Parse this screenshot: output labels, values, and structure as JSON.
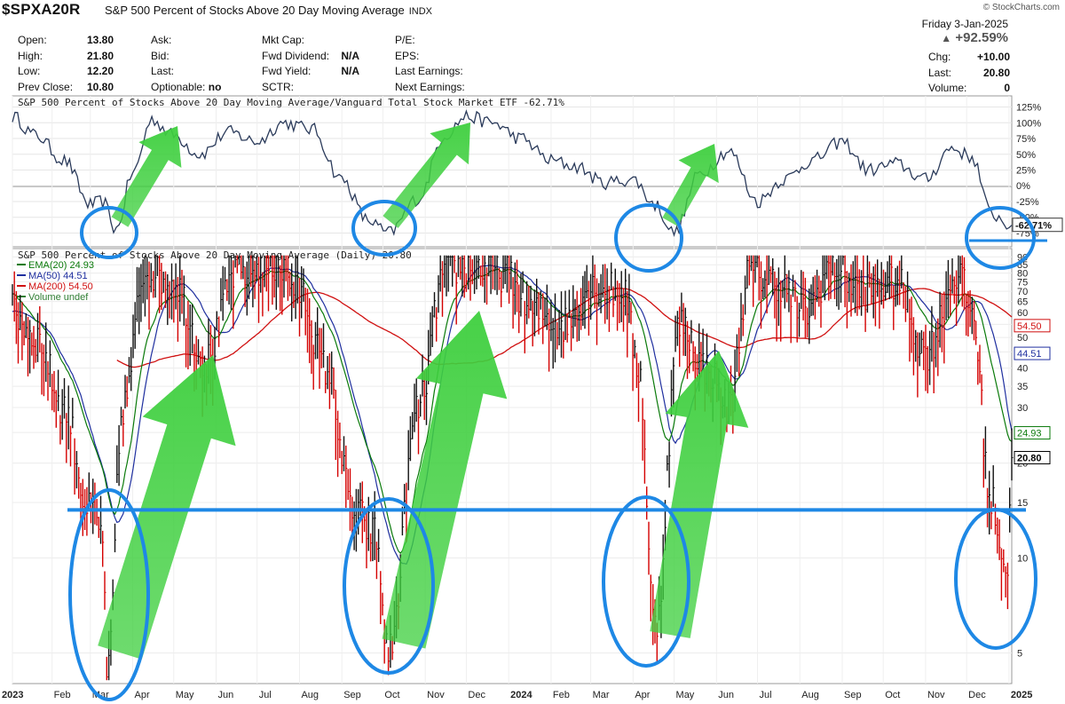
{
  "header": {
    "symbol": "$SPXA20R",
    "name": "S&P 500 Percent of Stocks Above 20 Day Moving Average",
    "exchange": "INDX",
    "brand": "© StockCharts.com",
    "date": "Friday  3-Jan-2025",
    "change_pct": "+92.59%",
    "col1": [
      {
        "label": "Open:",
        "value": "13.80"
      },
      {
        "label": "High:",
        "value": "21.80"
      },
      {
        "label": "Low:",
        "value": "12.20"
      },
      {
        "label": "Prev Close:",
        "value": "10.80"
      }
    ],
    "col2": [
      {
        "label": "Ask:",
        "value": ""
      },
      {
        "label": "Bid:",
        "value": ""
      },
      {
        "label": "Last:",
        "value": ""
      },
      {
        "label": "Optionable:",
        "value": "no"
      }
    ],
    "col3": [
      {
        "label": "Mkt Cap:",
        "value": ""
      },
      {
        "label": "Fwd Dividend:",
        "value": "N/A"
      },
      {
        "label": "Fwd Yield:",
        "value": "N/A"
      },
      {
        "label": "SCTR:",
        "value": ""
      }
    ],
    "col4": [
      {
        "label": "P/E:",
        "value": ""
      },
      {
        "label": "EPS:",
        "value": ""
      },
      {
        "label": "Last Earnings:",
        "value": ""
      },
      {
        "label": "Next Earnings:",
        "value": ""
      }
    ],
    "col5": [
      {
        "label": "Chg:",
        "value": "+10.00"
      },
      {
        "label": "Last:",
        "value": "20.80"
      },
      {
        "label": "Volume:",
        "value": "0"
      }
    ]
  },
  "chart_data": [
    {
      "type": "line",
      "title": "S&P 500 Percent of Stocks Above 20 Day Moving Average/Vanguard Total Stock Market ETF -62.71%",
      "y_ticks": [
        "125%",
        "100%",
        "75%",
        "50%",
        "25%",
        "0%",
        "-25%",
        "-50%",
        "-75%"
      ],
      "ylim": [
        -80,
        130
      ],
      "last_label": "-62.71%",
      "x": [
        "2023-01-03",
        "2023-01-20",
        "2023-02-10",
        "2023-03-01",
        "2023-03-10",
        "2023-03-20",
        "2023-04-01",
        "2023-04-15",
        "2023-05-01",
        "2023-05-20",
        "2023-06-10",
        "2023-07-01",
        "2023-07-20",
        "2023-08-10",
        "2023-09-01",
        "2023-09-20",
        "2023-10-05",
        "2023-10-27",
        "2023-11-15",
        "2023-12-01",
        "2023-12-20",
        "2024-01-10",
        "2024-02-01",
        "2024-02-20",
        "2024-03-10",
        "2024-04-01",
        "2024-04-17",
        "2024-05-01",
        "2024-05-20",
        "2024-06-10",
        "2024-07-01",
        "2024-07-20",
        "2024-08-10",
        "2024-09-01",
        "2024-09-20",
        "2024-10-10",
        "2024-11-01",
        "2024-11-20",
        "2024-12-05",
        "2024-12-19",
        "2025-01-03"
      ],
      "values": [
        110,
        80,
        40,
        -30,
        -25,
        -70,
        20,
        105,
        80,
        50,
        85,
        70,
        100,
        90,
        10,
        -55,
        -75,
        -20,
        80,
        110,
        100,
        75,
        40,
        30,
        5,
        10,
        -30,
        -75,
        20,
        55,
        -25,
        10,
        40,
        70,
        25,
        35,
        10,
        60,
        45,
        -45,
        -62.71
      ]
    },
    {
      "type": "line",
      "title": "S&P 500 Percent of Stocks Above 20 Day Moving Average (Daily) 20.80",
      "scale": "log",
      "y_ticks": [
        "90",
        "85",
        "80",
        "75",
        "70",
        "65",
        "60",
        "55",
        "50",
        "45",
        "40",
        "35",
        "30",
        "25",
        "20",
        "15",
        "10",
        "5"
      ],
      "ylim": [
        4,
        92
      ],
      "legend": [
        {
          "name": "EMA(20) 24.93",
          "color": "#0a7a0a"
        },
        {
          "name": "MA(50) 44.51",
          "color": "#1f2f9f"
        },
        {
          "name": "MA(200) 54.50",
          "color": "#d01010"
        },
        {
          "name": "Volume undef",
          "color": "#2e7d32"
        }
      ],
      "right_labels": [
        {
          "text": "54.50",
          "value": 54.5,
          "color": "#d01010"
        },
        {
          "text": "44.51",
          "value": 44.51,
          "color": "#1f2f9f"
        },
        {
          "text": "24.93",
          "value": 24.93,
          "color": "#0a7a0a"
        },
        {
          "text": "20.80",
          "value": 20.8,
          "color": "#000000"
        }
      ],
      "x_ticks": [
        "2023",
        "Feb",
        "Mar",
        "Apr",
        "May",
        "Jun",
        "Jul",
        "Aug",
        "Sep",
        "Oct",
        "Nov",
        "Dec",
        "2024",
        "Feb",
        "Mar",
        "Apr",
        "May",
        "Jun",
        "Jul",
        "Aug",
        "Sep",
        "Oct",
        "Nov",
        "Dec",
        "2025"
      ],
      "x": [
        "2023-01-03",
        "2023-01-20",
        "2023-02-10",
        "2023-02-28",
        "2023-03-10",
        "2023-03-13",
        "2023-03-25",
        "2023-04-10",
        "2023-05-01",
        "2023-05-25",
        "2023-06-15",
        "2023-07-15",
        "2023-08-01",
        "2023-08-20",
        "2023-09-10",
        "2023-09-25",
        "2023-10-05",
        "2023-10-27",
        "2023-11-15",
        "2023-12-01",
        "2023-12-28",
        "2024-01-20",
        "2024-02-10",
        "2024-03-01",
        "2024-03-25",
        "2024-04-05",
        "2024-04-17",
        "2024-05-05",
        "2024-05-25",
        "2024-06-10",
        "2024-06-25",
        "2024-07-15",
        "2024-08-05",
        "2024-08-25",
        "2024-09-15",
        "2024-10-10",
        "2024-11-01",
        "2024-11-25",
        "2024-12-05",
        "2024-12-19",
        "2024-12-31",
        "2025-01-03"
      ],
      "values": [
        60,
        50,
        30,
        14,
        12,
        4,
        30,
        82,
        75,
        42,
        80,
        85,
        70,
        40,
        14,
        12,
        5,
        30,
        80,
        85,
        80,
        60,
        55,
        72,
        70,
        40,
        6,
        55,
        40,
        30,
        80,
        75,
        60,
        85,
        70,
        75,
        45,
        80,
        60,
        15,
        9,
        20.8
      ],
      "horizontal_line": 14.2
    }
  ]
}
